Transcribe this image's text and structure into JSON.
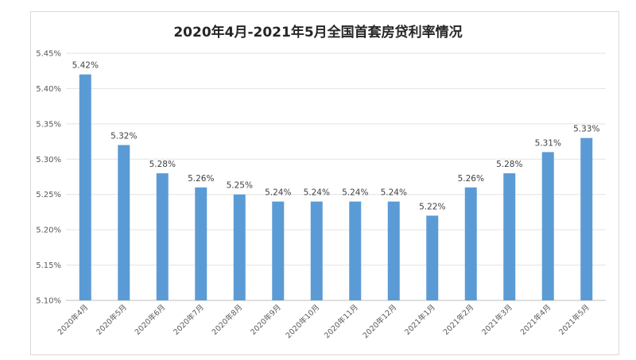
{
  "chart_data": {
    "type": "bar",
    "title": "2020年4月-2021年5月全国首套房贷利率情况",
    "xlabel": "",
    "ylabel": "",
    "ylim": [
      5.1,
      5.45
    ],
    "yticks": [
      "5.45%",
      "5.40%",
      "5.35%",
      "5.30%",
      "5.25%",
      "5.20%",
      "5.15%",
      "5.10%"
    ],
    "ytick_values": [
      5.45,
      5.4,
      5.35,
      5.3,
      5.25,
      5.2,
      5.15,
      5.1
    ],
    "categories": [
      "2020年4月",
      "2020年5月",
      "2020年6月",
      "2020年7月",
      "2020年8月",
      "2020年9月",
      "2020年10月",
      "2020年11月",
      "2020年12月",
      "2021年1月",
      "2021年2月",
      "2021年3月",
      "2021年4月",
      "2021年5月"
    ],
    "values": [
      5.42,
      5.32,
      5.28,
      5.26,
      5.25,
      5.24,
      5.24,
      5.24,
      5.24,
      5.22,
      5.26,
      5.28,
      5.31,
      5.33
    ],
    "data_labels": [
      "5.42%",
      "5.32%",
      "5.28%",
      "5.26%",
      "5.25%",
      "5.24%",
      "5.24%",
      "5.24%",
      "5.24%",
      "5.22%",
      "5.26%",
      "5.28%",
      "5.31%",
      "5.33%"
    ],
    "bar_color": "#5b9bd5",
    "grid": true,
    "legend": "none"
  }
}
